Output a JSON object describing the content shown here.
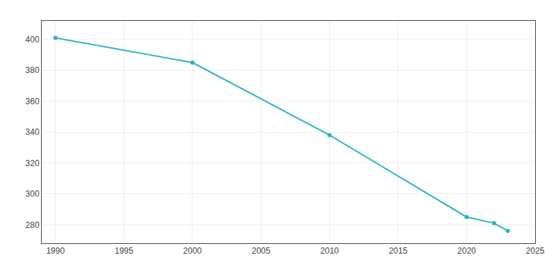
{
  "chart_data": {
    "type": "line",
    "x": [
      1990,
      2000,
      2010,
      2020,
      2022,
      2023
    ],
    "values": [
      401,
      385,
      338,
      285,
      281,
      276
    ],
    "color": "#2ab5c0",
    "marker": "circle",
    "line_style": "solid",
    "xlim": [
      1989,
      2025
    ],
    "ylim": [
      268,
      412
    ],
    "xticks": [
      1990,
      1995,
      2000,
      2005,
      2010,
      2015,
      2020,
      2025
    ],
    "yticks": [
      280,
      300,
      320,
      340,
      360,
      380,
      400
    ],
    "grid": true
  }
}
